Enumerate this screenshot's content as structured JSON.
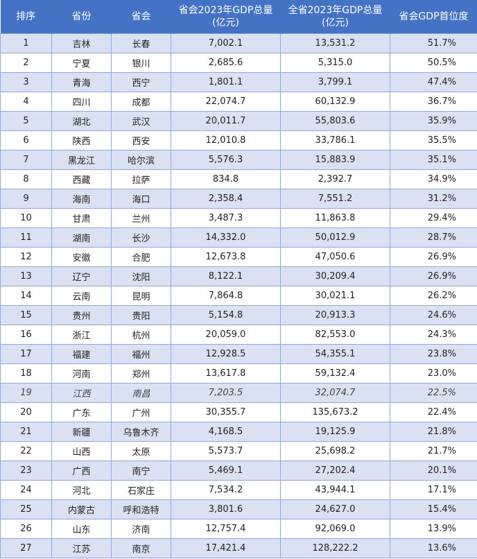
{
  "headers": [
    "排序",
    "省份",
    "省会",
    "省会2023年GDP总量\n(亿元)",
    "全省2023年GDP总量\n(亿元)",
    "省会GDP首位度"
  ],
  "colors": {
    "header_bg": "#4472c4",
    "odd_row_bg": "#d9e1f2",
    "border": "#8ea9db"
  },
  "rows": [
    [
      "1",
      "吉林",
      "长春",
      "7,002.1",
      "13,531.2",
      "51.7%"
    ],
    [
      "2",
      "宁夏",
      "银川",
      "2,685.6",
      "5,315.0",
      "50.5%"
    ],
    [
      "3",
      "青海",
      "西宁",
      "1,801.1",
      "3,799.1",
      "47.4%"
    ],
    [
      "4",
      "四川",
      "成都",
      "22,074.7",
      "60,132.9",
      "36.7%"
    ],
    [
      "5",
      "湖北",
      "武汉",
      "20,011.7",
      "55,803.6",
      "35.9%"
    ],
    [
      "6",
      "陕西",
      "西安",
      "12,010.8",
      "33,786.1",
      "35.5%"
    ],
    [
      "7",
      "黑龙江",
      "哈尔滨",
      "5,576.3",
      "15,883.9",
      "35.1%"
    ],
    [
      "8",
      "西藏",
      "拉萨",
      "834.8",
      "2,392.7",
      "34.9%"
    ],
    [
      "9",
      "海南",
      "海口",
      "2,358.4",
      "7,551.2",
      "31.2%"
    ],
    [
      "10",
      "甘肃",
      "兰州",
      "3,487.3",
      "11,863.8",
      "29.4%"
    ],
    [
      "11",
      "湖南",
      "长沙",
      "14,332.0",
      "50,012.9",
      "28.7%"
    ],
    [
      "12",
      "安徽",
      "合肥",
      "12,673.8",
      "47,050.6",
      "26.9%"
    ],
    [
      "13",
      "辽宁",
      "沈阳",
      "8,122.1",
      "30,209.4",
      "26.9%"
    ],
    [
      "14",
      "云南",
      "昆明",
      "7,864.8",
      "30,021.1",
      "26.2%"
    ],
    [
      "15",
      "贵州",
      "贵阳",
      "5,154.8",
      "20,913.3",
      "24.6%"
    ],
    [
      "16",
      "浙江",
      "杭州",
      "20,059.0",
      "82,553.0",
      "24.3%"
    ],
    [
      "17",
      "福建",
      "福州",
      "12,928.5",
      "54,355.1",
      "23.8%"
    ],
    [
      "18",
      "河南",
      "郑州",
      "13,617.8",
      "59,132.4",
      "23.0%"
    ],
    [
      "19",
      "江西",
      "南昌",
      "7,203.5",
      "32,074.7",
      "22.5%"
    ],
    [
      "20",
      "广东",
      "广州",
      "30,355.7",
      "135,673.2",
      "22.4%"
    ],
    [
      "21",
      "新疆",
      "乌鲁木齐",
      "4,168.5",
      "19,125.9",
      "21.8%"
    ],
    [
      "22",
      "山西",
      "太原",
      "5,573.7",
      "25,698.2",
      "21.7%"
    ],
    [
      "23",
      "广西",
      "南宁",
      "5,469.1",
      "27,202.4",
      "20.1%"
    ],
    [
      "24",
      "河北",
      "石家庄",
      "7,534.2",
      "43,944.1",
      "17.1%"
    ],
    [
      "25",
      "内蒙古",
      "呼和浩特",
      "3,801.6",
      "24,627.0",
      "15.4%"
    ],
    [
      "26",
      "山东",
      "济南",
      "12,757.4",
      "92,069.0",
      "13.9%"
    ],
    [
      "27",
      "江苏",
      "南京",
      "17,421.4",
      "128,222.2",
      "13.6%"
    ]
  ],
  "italic_row_rank": "19"
}
